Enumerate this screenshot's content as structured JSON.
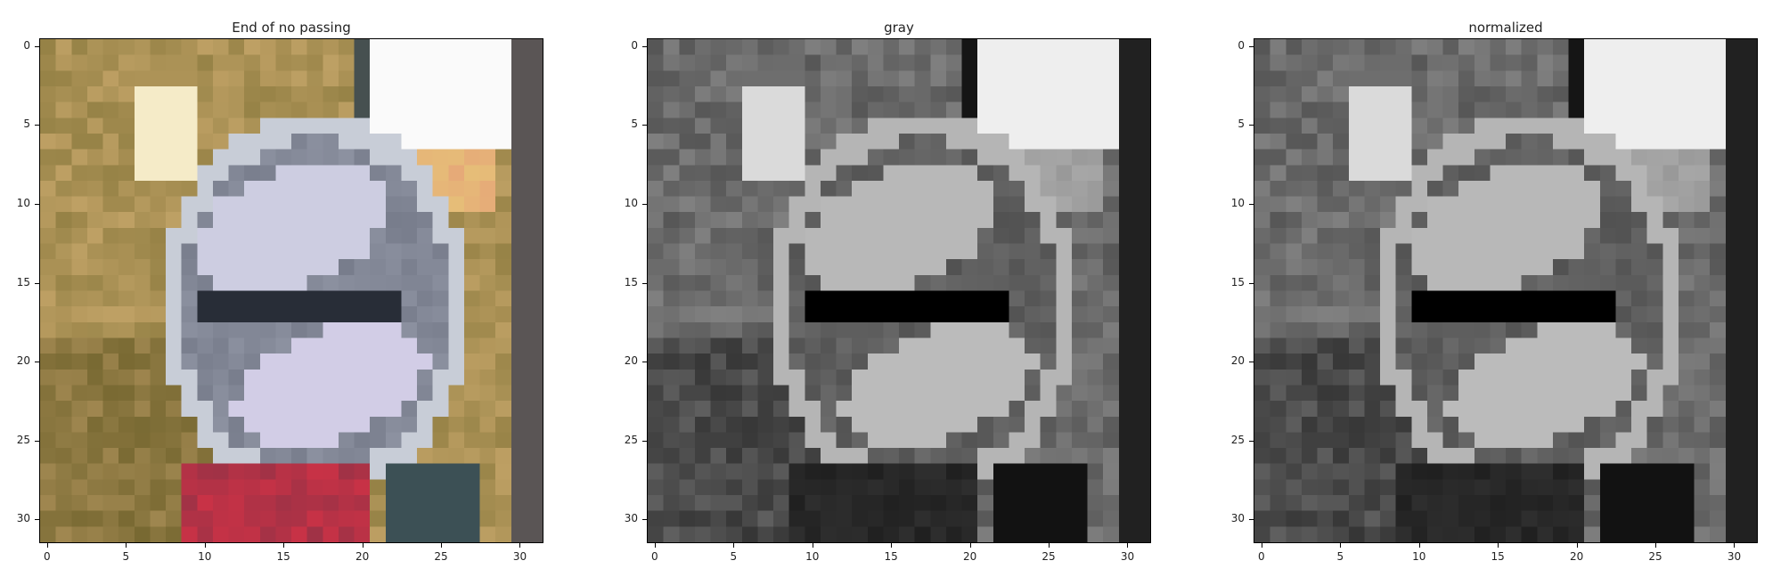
{
  "panels": [
    {
      "title": "End of no passing",
      "mode": "color"
    },
    {
      "title": "gray",
      "mode": "gray"
    },
    {
      "title": "normalized",
      "mode": "gray"
    }
  ],
  "axes": {
    "x_ticks": [
      "0",
      "5",
      "10",
      "15",
      "20",
      "25",
      "30"
    ],
    "y_ticks": [
      "0",
      "5",
      "10",
      "15",
      "20",
      "25",
      "30"
    ],
    "xlim": [
      -0.5,
      31.5
    ],
    "ylim": [
      31.5,
      -0.5
    ]
  },
  "image_grid": {
    "rows": 32,
    "cols": 32
  }
}
